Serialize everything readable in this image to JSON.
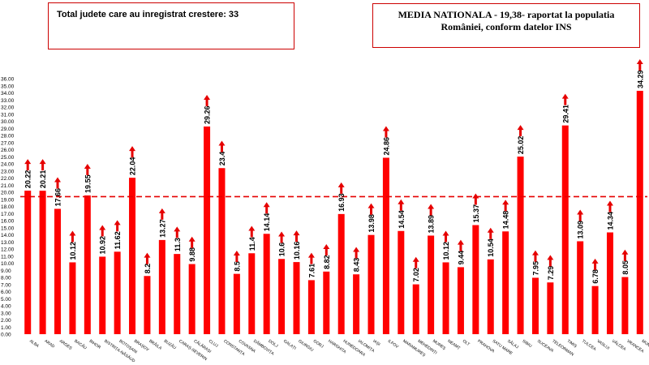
{
  "header": {
    "left_box_text": "Total judete care au inregistrat crestere: 33",
    "right_box_line1": "MEDIA NATIONALA - 19,38-  raportat la populatia",
    "right_box_line2": "României, conform datelor INS"
  },
  "colors": {
    "bar": "#ff0000",
    "arrow": "#e60000",
    "reference_line": "#e60000",
    "box_border": "#cc0000"
  },
  "chart_data": {
    "type": "bar",
    "categories": [
      "ALBA",
      "ARAD",
      "ARGEȘ",
      "BACĂU",
      "BIHOR",
      "BISTRIȚA-NĂSĂUD",
      "BOTOȘANI",
      "BRAȘOV",
      "BRĂILA",
      "BUZĂU",
      "CARAȘ-SEVERIN",
      "CĂLĂRAȘI",
      "CLUJ",
      "CONSTANȚA",
      "COVASNA",
      "DÂMBOVIȚA",
      "DOLJ",
      "GALAȚI",
      "GIURGIU",
      "GORJ",
      "HARGHITA",
      "HUNEDOARA",
      "IALOMIȚA",
      "IAȘI",
      "ILFOV",
      "MARAMUREȘ",
      "MEHEDINȚI",
      "MUREȘ",
      "NEAMȚ",
      "OLT",
      "PRAHOVA",
      "SATU MARE",
      "SĂLAJ",
      "SIBIU",
      "SUCEAVA",
      "TELEORMAN",
      "TIMIȘ",
      "TULCEA",
      "VASLUI",
      "VÂLCEA",
      "VRANCEA",
      "MUNICIPIUL BUCUREȘTI"
    ],
    "values": [
      20.22,
      20.21,
      17.66,
      10.12,
      19.55,
      10.92,
      11.62,
      22.04,
      8.2,
      13.27,
      11.3,
      9.88,
      29.26,
      23.4,
      8.5,
      11.4,
      14.14,
      10.6,
      10.16,
      7.61,
      8.82,
      16.93,
      8.43,
      13.98,
      24.86,
      14.54,
      7.02,
      13.89,
      10.12,
      9.44,
      15.37,
      10.54,
      14.48,
      25.02,
      7.95,
      7.29,
      29.41,
      13.09,
      6.78,
      14.34,
      8.05,
      34.29
    ],
    "value_labels": [
      "20.22",
      "20.21",
      "17.66",
      "10.12",
      "19.55",
      "10.92",
      "11.62",
      "22.04",
      "8.2",
      "13.27",
      "11.3",
      "9.88",
      "29.26",
      "23.4",
      "8.5",
      "11.4",
      "14.14",
      "10.6",
      "10.16",
      "7.61",
      "8.82",
      "16.93",
      "8.43",
      "13.98",
      "24.86",
      "14.54",
      "7.02",
      "13.89",
      "10.12",
      "9.44",
      "15.37",
      "10.54",
      "14.48",
      "25.02",
      "7.95",
      "7.29",
      "29.41",
      "13.09",
      "6.78",
      "14.34",
      "8.05",
      "34.29"
    ],
    "reference_value": 19.38,
    "ylim": [
      0,
      36
    ],
    "yticks": [
      "0.00",
      "1.00",
      "2.00",
      "3.00",
      "4.00",
      "5.00",
      "6.00",
      "7.00",
      "8.00",
      "9.00",
      "10.00",
      "11.00",
      "12.00",
      "13.00",
      "14.00",
      "15.00",
      "16.00",
      "17.00",
      "18.00",
      "19.00",
      "20.00",
      "21.00",
      "22.00",
      "23.00",
      "24.00",
      "25.00",
      "26.00",
      "27.00",
      "28.00",
      "29.00",
      "30.00",
      "31.00",
      "32.00",
      "33.00",
      "34.00",
      "35.00",
      "36.00"
    ],
    "trend_arrows": "up",
    "grid": false,
    "legend": "none"
  }
}
